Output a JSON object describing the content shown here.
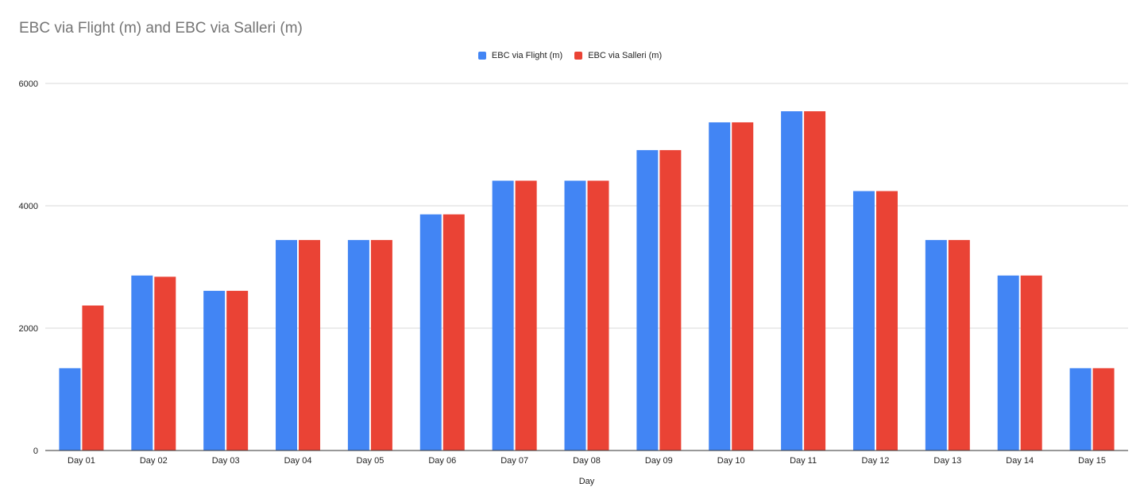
{
  "chart_data": {
    "type": "bar",
    "title": "EBC via Flight (m) and EBC via Salleri (m)",
    "xlabel": "Day",
    "ylabel": "",
    "ylim": [
      0,
      6000
    ],
    "yticks": [
      "0",
      "2000",
      "4000",
      "6000"
    ],
    "grid": true,
    "legend_position": "top",
    "categories": [
      "Day 01",
      "Day 02",
      "Day 03",
      "Day 04",
      "Day 05",
      "Day 06",
      "Day 07",
      "Day 08",
      "Day 09",
      "Day 10",
      "Day 11",
      "Day 12",
      "Day 13",
      "Day 14",
      "Day 15"
    ],
    "series": [
      {
        "name": "EBC via Flight (m)",
        "color": "#4285f4",
        "values": [
          1345,
          2860,
          2610,
          3440,
          3440,
          3860,
          4410,
          4410,
          4910,
          5364,
          5545,
          4240,
          3440,
          2860,
          1345
        ]
      },
      {
        "name": "EBC via Salleri (m)",
        "color": "#ea4335",
        "values": [
          2370,
          2840,
          2610,
          3440,
          3440,
          3860,
          4410,
          4410,
          4910,
          5364,
          5545,
          4240,
          3440,
          2860,
          1345
        ]
      }
    ]
  }
}
